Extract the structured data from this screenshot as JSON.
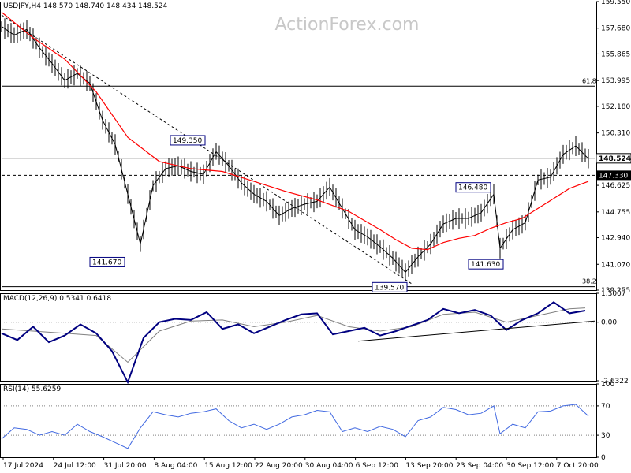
{
  "chart_data": [
    {
      "type": "line",
      "panel": "price",
      "title": "USDJPY,H4  148.570 148.740 148.434 148.524",
      "watermark": "ActionForex.com",
      "ylim": [
        139.255,
        159.55
      ],
      "y_ticks": [
        "159.550",
        "157.680",
        "155.865",
        "153.995",
        "152.180",
        "150.310",
        "148.524",
        "146.625",
        "144.755",
        "142.940",
        "141.070",
        "139.255"
      ],
      "current_price_label": "148.524",
      "current_price": 148.524,
      "support_level_label": "147.330",
      "support_level": 147.33,
      "fib_levels": [
        {
          "label": "61.8",
          "value": 153.6
        },
        {
          "label": "38.2",
          "value": 139.5
        }
      ],
      "annotations": [
        {
          "label": "149.350",
          "bar": 65,
          "value": 149.35
        },
        {
          "label": "141.670",
          "bar": 40,
          "value": 141.67
        },
        {
          "label": "139.570",
          "bar": 129,
          "value": 139.57
        },
        {
          "label": "146.480",
          "bar": 156,
          "value": 146.48
        },
        {
          "label": "141.630",
          "bar": 157,
          "value": 141.63
        }
      ],
      "trendline_label": "",
      "series": [
        {
          "name": "",
          "color": "#000000",
          "x": [
            0,
            4,
            8,
            12,
            16,
            20,
            24,
            28,
            32,
            36,
            40,
            44,
            48,
            52,
            56,
            60,
            64,
            68,
            72,
            76,
            80,
            84,
            88,
            92,
            96,
            100,
            104,
            108,
            112,
            116,
            120,
            124,
            128,
            132,
            136,
            140,
            144,
            148,
            152,
            156,
            158,
            162,
            166,
            170,
            174,
            178,
            182,
            186
          ],
          "values": [
            157.8,
            157.2,
            157.6,
            156.3,
            155.2,
            154.0,
            154.5,
            153.8,
            151.2,
            149.5,
            146.0,
            142.5,
            146.6,
            147.8,
            148.0,
            147.6,
            147.4,
            149.0,
            148.0,
            146.8,
            146.0,
            145.5,
            144.5,
            145.0,
            145.3,
            145.5,
            146.5,
            145.0,
            143.5,
            143.0,
            142.3,
            141.5,
            140.5,
            141.6,
            142.5,
            143.9,
            144.3,
            144.3,
            144.7,
            146.0,
            142.2,
            143.5,
            144.0,
            147.0,
            147.2,
            148.8,
            149.4,
            148.5
          ]
        },
        {
          "name": "",
          "color": "#ff0000",
          "x": [
            0,
            10,
            20,
            30,
            40,
            50,
            60,
            70,
            80,
            90,
            100,
            110,
            120,
            125,
            130,
            135,
            140,
            145,
            150,
            155,
            160,
            165,
            170,
            175,
            180,
            186
          ],
          "values": [
            158.8,
            157.0,
            155.5,
            153.2,
            150.0,
            148.3,
            147.8,
            147.6,
            146.9,
            146.2,
            145.6,
            144.8,
            143.5,
            142.8,
            142.2,
            142.1,
            142.6,
            142.9,
            143.1,
            143.6,
            144.0,
            144.3,
            145.0,
            145.7,
            146.4,
            146.9
          ]
        }
      ],
      "trendline": {
        "x": [
          0,
          130
        ],
        "values": [
          158.6,
          139.7
        ]
      }
    },
    {
      "type": "line",
      "panel": "macd",
      "title": "MACD(12,26,9) 0.5341 0.6418",
      "ylim": [
        -2.6322,
        1.3007
      ],
      "y_ticks": [
        "1.3007",
        "0.00",
        "-2.6322"
      ],
      "series": [
        {
          "name": "MACD",
          "color": "#000080",
          "x": [
            0,
            5,
            10,
            15,
            20,
            25,
            30,
            35,
            40,
            45,
            50,
            55,
            60,
            65,
            70,
            75,
            80,
            85,
            90,
            95,
            100,
            105,
            110,
            115,
            120,
            125,
            130,
            135,
            140,
            145,
            150,
            155,
            160,
            165,
            170,
            175,
            180,
            185
          ],
          "values": [
            -0.5,
            -0.8,
            -0.2,
            -0.9,
            -0.6,
            -0.1,
            -0.5,
            -1.3,
            -2.7,
            -0.7,
            0.0,
            0.15,
            0.1,
            0.45,
            -0.3,
            -0.1,
            -0.5,
            -0.2,
            0.1,
            0.35,
            0.4,
            -0.55,
            -0.4,
            -0.25,
            -0.6,
            -0.4,
            -0.15,
            0.1,
            0.6,
            0.4,
            0.55,
            0.3,
            -0.35,
            0.1,
            0.4,
            0.9,
            0.4,
            0.52
          ]
        },
        {
          "name": "Signal",
          "color": "#808080",
          "x": [
            0,
            10,
            20,
            30,
            40,
            50,
            60,
            70,
            80,
            90,
            100,
            110,
            120,
            130,
            140,
            150,
            160,
            170,
            180,
            185
          ],
          "values": [
            -0.3,
            -0.4,
            -0.5,
            -0.6,
            -1.8,
            -0.4,
            0.05,
            0.1,
            -0.2,
            0.0,
            0.3,
            -0.2,
            -0.4,
            -0.2,
            0.35,
            0.45,
            0.0,
            0.3,
            0.6,
            0.64
          ]
        }
      ],
      "trendline": {
        "x": [
          113,
          188
        ],
        "values": [
          -0.85,
          0.05
        ]
      }
    },
    {
      "type": "line",
      "panel": "rsi",
      "title": "RSI(14) 55.6259",
      "ylim": [
        0,
        100
      ],
      "y_ticks": [
        "100",
        "70",
        "30",
        "0"
      ],
      "levels": [
        70,
        30
      ],
      "series": [
        {
          "name": "RSI",
          "color": "#4169e1",
          "x": [
            0,
            4,
            8,
            12,
            16,
            20,
            24,
            28,
            32,
            36,
            40,
            44,
            48,
            52,
            56,
            60,
            64,
            68,
            72,
            76,
            80,
            84,
            88,
            92,
            96,
            100,
            104,
            108,
            112,
            116,
            120,
            124,
            128,
            132,
            136,
            140,
            144,
            148,
            152,
            156,
            158,
            162,
            166,
            170,
            174,
            178,
            182,
            186
          ],
          "values": [
            25,
            40,
            38,
            30,
            35,
            30,
            45,
            35,
            28,
            20,
            12,
            40,
            62,
            58,
            55,
            60,
            62,
            66,
            50,
            40,
            45,
            38,
            45,
            55,
            58,
            64,
            62,
            35,
            40,
            35,
            42,
            38,
            28,
            50,
            55,
            68,
            65,
            58,
            60,
            70,
            32,
            45,
            40,
            62,
            63,
            70,
            72,
            56
          ]
        }
      ]
    }
  ],
  "x_axis": {
    "labels": [
      "17 Jul 2024",
      "24 Jul 12:00",
      "31 Jul 20:00",
      "8 Aug 04:00",
      "15 Aug 12:00",
      "22 Aug 20:00",
      "30 Aug 04:00",
      "6 Sep 12:00",
      "13 Sep 20:00",
      "23 Sep 04:00",
      "30 Sep 12:00",
      "7 Oct 20:00"
    ]
  }
}
